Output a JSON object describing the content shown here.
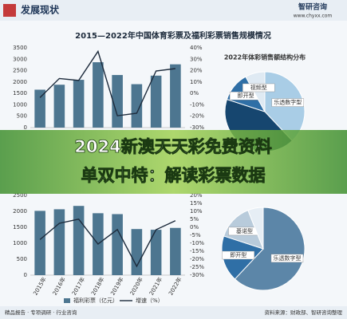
{
  "header": {
    "title": "发展现状",
    "brand": "智研咨询",
    "url": "www.chyxx.com"
  },
  "title": "2015—2022年中国体育彩票及福利彩票销售规模情况",
  "charts": [
    {
      "type": "bar_line",
      "values": [
        1664,
        1882,
        2097,
        2869,
        2308,
        1906,
        2281,
        2777
      ],
      "growth": [
        -3.7,
        13.1,
        11.4,
        36.9,
        -19.6,
        -17.4,
        19.7,
        21.8
      ],
      "ylim": [
        0,
        3500
      ],
      "yticks": [
        0,
        500,
        1000,
        1500,
        2000,
        2500,
        3000,
        3500
      ],
      "y2lim": [
        -30,
        40
      ],
      "y2ticks": [
        {
          "value": 40,
          "label": "40%"
        },
        {
          "value": 30,
          "label": "30%"
        },
        {
          "value": 20,
          "label": "20%"
        },
        {
          "value": 10,
          "label": "10%"
        },
        {
          "value": 0,
          "label": "0%"
        },
        {
          "value": -10,
          "label": "-10%"
        },
        {
          "value": -20,
          "label": "-20%"
        },
        {
          "value": -30,
          "label": "-30%"
        }
      ],
      "bar_color": "#4d7690",
      "line_color": "#1d2b3c"
    },
    {
      "type": "bar_line",
      "categories": [
        "2015年",
        "2016年",
        "2017年",
        "2018年",
        "2019年",
        "2020年",
        "2021年",
        "2022年"
      ],
      "values": [
        2015,
        2065,
        2170,
        1941,
        1913,
        1445,
        1423,
        1481
      ],
      "growth": [
        -7.7,
        2.5,
        5.1,
        -10.5,
        -1.4,
        -24.5,
        -1.5,
        4.1
      ],
      "ylim": [
        0,
        2500
      ],
      "yticks": [
        0,
        500,
        1000,
        1500,
        2000,
        2500
      ],
      "y2lim": [
        -30,
        20
      ],
      "y2ticks": [
        {
          "value": 20,
          "label": "20%"
        },
        {
          "value": 15,
          "label": "15%"
        },
        {
          "value": 10,
          "label": "10%"
        },
        {
          "value": 5,
          "label": "5%"
        },
        {
          "value": 0,
          "label": "0%"
        },
        {
          "value": -5,
          "label": "-5%"
        },
        {
          "value": -10,
          "label": "-10%"
        },
        {
          "value": -15,
          "label": "-15%"
        },
        {
          "value": -20,
          "label": "-20%"
        },
        {
          "value": -25,
          "label": "-25%"
        },
        {
          "value": -30,
          "label": "-30%"
        }
      ],
      "bar_color": "#4d7690",
      "line_color": "#1d2b3c",
      "legend": [
        "福利彩票（亿元）",
        "增速（%）"
      ]
    },
    {
      "type": "pie",
      "title": "2022年体彩销售额结构分布",
      "labels": [
        "乐透数字型",
        null,
        "即开型",
        "视频型"
      ],
      "values": [
        38,
        42,
        12,
        8
      ],
      "colors": [
        "#a9cde6",
        "#16466f",
        "#2f6fa6",
        "#dfeaf3"
      ]
    },
    {
      "type": "pie",
      "labels": [
        "乐透数字型",
        "即开型",
        "基诺型",
        null
      ],
      "values": [
        62,
        18,
        14,
        6
      ],
      "colors": [
        "#5c86a8",
        "#2f6fa6",
        "#b8cbdb",
        "#e6eef5"
      ]
    }
  ],
  "banner": [
    "2024新澳天天彩免费资料",
    "单双中特：解读彩票数据"
  ],
  "footer": {
    "left": "精品报告 · 专项调研 · 行业咨询",
    "right": "资料来源：财政部、智研咨询整理"
  }
}
